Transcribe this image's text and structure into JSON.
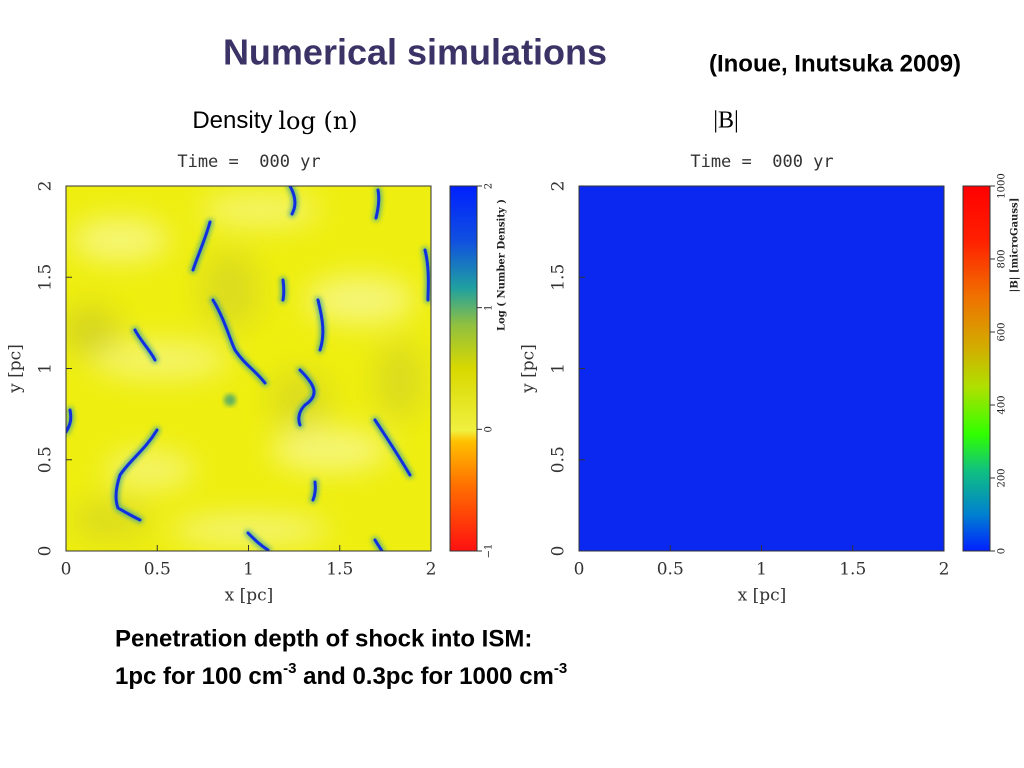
{
  "title": "Numerical simulations",
  "citation": "(Inoue, Inutsuka 2009)",
  "panels": [
    {
      "heading": "Density",
      "heading_math": "log (n)",
      "time": "Time =  000 yr",
      "xlabel": "x [pc]",
      "ylabel": "y [pc]",
      "xticks": [
        "0",
        "0.5",
        "1",
        "1.5",
        "2"
      ],
      "yticks": [
        "0",
        "0.5",
        "1",
        "1.5",
        "2"
      ],
      "colorbar_label": "Log ( Number Density )",
      "colorbar_ticks": [
        "−1",
        "0",
        "1",
        "2"
      ]
    },
    {
      "heading_math": "|B|",
      "time": "Time =  000 yr",
      "xlabel": "x [pc]",
      "ylabel": "y [pc]",
      "xticks": [
        "0",
        "0.5",
        "1",
        "1.5",
        "2"
      ],
      "yticks": [
        "0",
        "0.5",
        "1",
        "1.5",
        "2"
      ],
      "colorbar_label": "|B| [microGauss]",
      "colorbar_ticks": [
        "0",
        "200",
        "400",
        "600",
        "800",
        "1000"
      ]
    }
  ],
  "caption": {
    "line1": "Penetration depth of shock into ISM:",
    "line2": [
      "1pc for 100 cm",
      "-3",
      " and 0.3pc for 1000 cm",
      "-3"
    ]
  }
}
